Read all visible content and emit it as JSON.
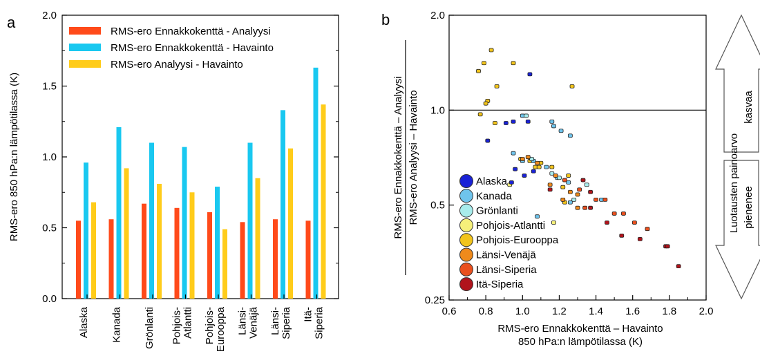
{
  "chart_data": [
    {
      "type": "bar",
      "panel_label": "a",
      "ylabel": "RMS-ero 850 hPa:n lämpötilassa (K)",
      "xlabel": "",
      "ylim": [
        0,
        2.0
      ],
      "yticks": [
        "0.0",
        "0.5",
        "1.0",
        "1.5",
        "2.0"
      ],
      "categories": [
        [
          "Alaska"
        ],
        [
          "Kanada"
        ],
        [
          "Grönlanti"
        ],
        [
          "Pohjois-",
          "Atlantti"
        ],
        [
          "Pohjois-",
          "Eurooppa"
        ],
        [
          "Länsi-",
          "Venäjä"
        ],
        [
          "Länsi-",
          "Siperia"
        ],
        [
          "Itä-",
          "Siperia"
        ]
      ],
      "series": [
        {
          "name": "RMS-ero Ennakkokenttä - Analyysi",
          "color": "#ff4a1a",
          "values": [
            0.55,
            0.56,
            0.67,
            0.64,
            0.61,
            0.54,
            0.56,
            0.55
          ]
        },
        {
          "name": "RMS-ero Ennakkokenttä - Havainto",
          "color": "#19c8f0",
          "values": [
            0.96,
            1.21,
            1.1,
            1.07,
            0.79,
            1.1,
            1.33,
            1.63
          ]
        },
        {
          "name": "RMS-ero Analyysi - Havainto",
          "color": "#ffcc1a",
          "values": [
            0.68,
            0.92,
            0.81,
            0.75,
            0.49,
            0.85,
            1.06,
            1.37
          ]
        }
      ],
      "legend_position": "top-left"
    },
    {
      "type": "scatter",
      "panel_label": "b",
      "xlabel": [
        "RMS-ero Ennakkokenttä – Havainto",
        "850 hPa:n lämpötilassa (K)"
      ],
      "ylabel_numerator": "RMS-ero Ennakkokenttä – Analyysi",
      "ylabel_denominator": "RMS-ero Analyysi – Havainto",
      "xlim": [
        0.6,
        2.0
      ],
      "ylim": [
        0.25,
        2.0
      ],
      "yscale": "log",
      "xticks": [
        "0.6",
        "0.8",
        "1.0",
        "1.2",
        "1.4",
        "1.6",
        "1.8",
        "2.0"
      ],
      "yticks": [
        {
          "value": 0.25,
          "label": "0.25"
        },
        {
          "value": 0.5,
          "label": "0.5"
        },
        {
          "value": 1.0,
          "label": "1.0"
        },
        {
          "value": 2.0,
          "label": "2.0"
        }
      ],
      "reference_line_y": 1.0,
      "legend_position": "lower-left",
      "legend": [
        {
          "name": "Alaska",
          "color": "#1a22d6"
        },
        {
          "name": "Kanada",
          "color": "#6fc4ec"
        },
        {
          "name": "Grönlanti",
          "color": "#a8ecec"
        },
        {
          "name": "Pohjois-Atlantti",
          "color": "#f5f07a"
        },
        {
          "name": "Pohjois-Eurooppa",
          "color": "#f2c41c"
        },
        {
          "name": "Länsi-Venäjä",
          "color": "#ef8a1c"
        },
        {
          "name": "Länsi-Siperia",
          "color": "#e9501e"
        },
        {
          "name": "Itä-Siperia",
          "color": "#b0141c"
        }
      ],
      "points": [
        {
          "group": "Pohjois-Eurooppa",
          "xy": [
            [
              0.76,
              1.33
            ],
            [
              0.79,
              1.41
            ],
            [
              0.83,
              1.55
            ],
            [
              0.95,
              1.41
            ],
            [
              1.27,
              1.19
            ],
            [
              0.86,
              1.19
            ],
            [
              0.81,
              1.07
            ],
            [
              0.8,
              1.05
            ],
            [
              0.77,
              0.97
            ],
            [
              0.85,
              0.91
            ]
          ]
        },
        {
          "group": "Pohjois-Eurooppa",
          "xy": [
            [
              0.99,
              0.7
            ],
            [
              1.04,
              0.69
            ],
            [
              1.07,
              0.66
            ],
            [
              1.1,
              0.68
            ],
            [
              1.16,
              0.66
            ],
            [
              1.25,
              0.62
            ],
            [
              1.22,
              0.57
            ],
            [
              1.23,
              0.51
            ],
            [
              1.09,
              0.66
            ]
          ]
        },
        {
          "group": "Pohjois-Atlantti",
          "xy": [
            [
              0.93,
              0.58
            ],
            [
              1.17,
              0.44
            ]
          ]
        },
        {
          "group": "Alaska",
          "xy": [
            [
              1.04,
              1.3
            ],
            [
              0.91,
              0.91
            ],
            [
              0.95,
              0.92
            ],
            [
              1.03,
              0.92
            ],
            [
              0.81,
              0.8
            ],
            [
              0.96,
              0.65
            ],
            [
              1.01,
              0.62
            ],
            [
              1.06,
              0.64
            ],
            [
              0.94,
              0.59
            ]
          ]
        },
        {
          "group": "Kanada",
          "xy": [
            [
              1.0,
              0.96
            ],
            [
              1.16,
              0.92
            ],
            [
              1.17,
              0.89
            ],
            [
              1.21,
              0.86
            ],
            [
              1.26,
              0.83
            ],
            [
              0.95,
              0.73
            ],
            [
              1.0,
              0.69
            ],
            [
              1.06,
              0.69
            ],
            [
              1.13,
              0.66
            ],
            [
              1.19,
              0.61
            ],
            [
              1.25,
              0.59
            ],
            [
              1.26,
              0.51
            ],
            [
              1.43,
              0.52
            ],
            [
              1.08,
              0.46
            ]
          ]
        },
        {
          "group": "Grönlanti",
          "xy": [
            [
              1.02,
              0.96
            ],
            [
              1.05,
              0.7
            ],
            [
              1.16,
              0.63
            ],
            [
              1.2,
              0.61
            ],
            [
              1.35,
              0.58
            ],
            [
              1.28,
              0.52
            ]
          ]
        },
        {
          "group": "Länsi-Venäjä",
          "xy": [
            [
              1.0,
              0.7
            ],
            [
              1.03,
              0.71
            ],
            [
              1.08,
              0.68
            ],
            [
              1.18,
              0.62
            ],
            [
              1.15,
              0.58
            ],
            [
              1.26,
              0.55
            ],
            [
              1.22,
              0.52
            ],
            [
              1.3,
              0.54
            ],
            [
              1.3,
              0.49
            ]
          ]
        },
        {
          "group": "Länsi-Siperia",
          "xy": [
            [
              1.23,
              0.6
            ],
            [
              1.31,
              0.56
            ],
            [
              1.34,
              0.49
            ],
            [
              1.4,
              0.52
            ],
            [
              1.45,
              0.52
            ],
            [
              1.5,
              0.47
            ],
            [
              1.55,
              0.47
            ],
            [
              1.61,
              0.44
            ],
            [
              1.68,
              0.42
            ]
          ]
        },
        {
          "group": "Itä-Siperia",
          "xy": [
            [
              1.33,
              0.6
            ],
            [
              1.37,
              0.55
            ],
            [
              1.15,
              0.56
            ],
            [
              1.37,
              0.49
            ],
            [
              1.46,
              0.44
            ],
            [
              1.54,
              0.4
            ],
            [
              1.64,
              0.39
            ],
            [
              1.78,
              0.37
            ],
            [
              1.79,
              0.37
            ],
            [
              1.85,
              0.32
            ]
          ]
        }
      ]
    }
  ],
  "side_arrow": {
    "label": "Luotausten painoarvo",
    "up_label": "kasvaa",
    "down_label": "pienenee"
  }
}
